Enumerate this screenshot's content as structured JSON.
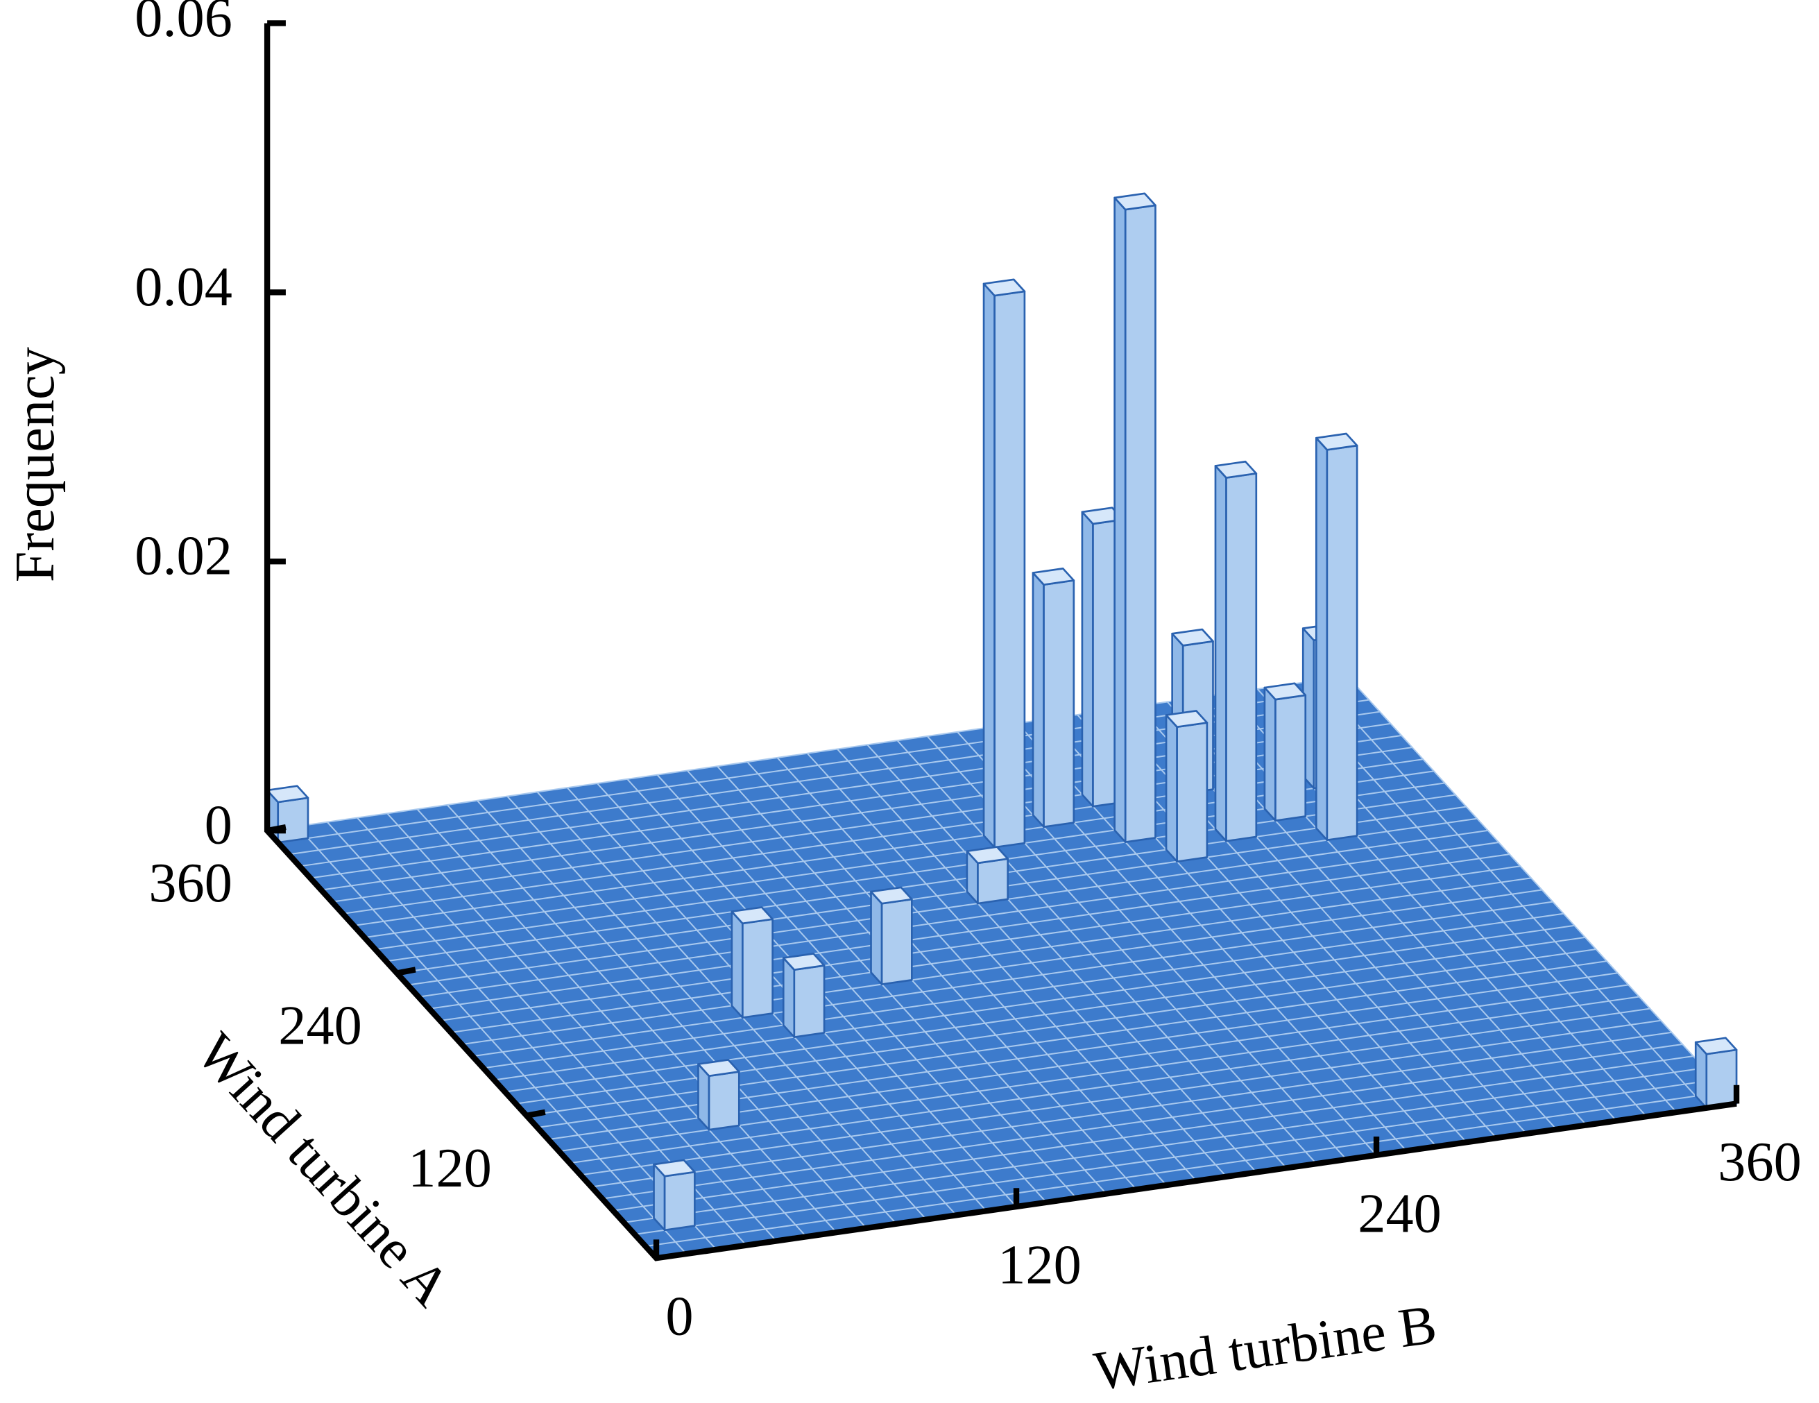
{
  "chart_data": {
    "type": "bar3d",
    "x_label": "Wind turbine B",
    "y_label": "Wind turbine A",
    "z_label": "Frequency",
    "xlim": [
      0,
      360
    ],
    "ylim": [
      0,
      360
    ],
    "zlim": [
      0,
      0.06
    ],
    "xticks": [
      0,
      120,
      240,
      360
    ],
    "yticks": [
      120,
      240,
      360
    ],
    "zticks": [
      0,
      {
        "value": 0.02,
        "label": "0.02"
      },
      {
        "value": 0.04,
        "label": "0.04"
      },
      {
        "value": 0.06,
        "label": "0.06"
      }
    ],
    "color": "#aecdf0",
    "floor_color": "#3d7bcc",
    "bars": [
      {
        "x": 215,
        "y": 275,
        "z": 0.041
      },
      {
        "x": 255,
        "y": 265,
        "z": 0.047
      },
      {
        "x": 285,
        "y": 255,
        "z": 0.027
      },
      {
        "x": 315,
        "y": 245,
        "z": 0.029
      },
      {
        "x": 235,
        "y": 285,
        "z": 0.018
      },
      {
        "x": 255,
        "y": 295,
        "z": 0.021
      },
      {
        "x": 285,
        "y": 295,
        "z": 0.011
      },
      {
        "x": 325,
        "y": 285,
        "z": 0.011
      },
      {
        "x": 305,
        "y": 265,
        "z": 0.009
      },
      {
        "x": 265,
        "y": 245,
        "z": 0.01
      },
      {
        "x": 195,
        "y": 235,
        "z": 0.003
      },
      {
        "x": 95,
        "y": 175,
        "z": 0.007
      },
      {
        "x": 105,
        "y": 155,
        "z": 0.005
      },
      {
        "x": 145,
        "y": 185,
        "z": 0.006
      },
      {
        "x": 55,
        "y": 95,
        "z": 0.004
      },
      {
        "x": 15,
        "y": 25,
        "z": 0.004
      },
      {
        "x": 5,
        "y": 355,
        "z": 0.003
      },
      {
        "x": 355,
        "y": 5,
        "z": 0.004
      }
    ]
  }
}
